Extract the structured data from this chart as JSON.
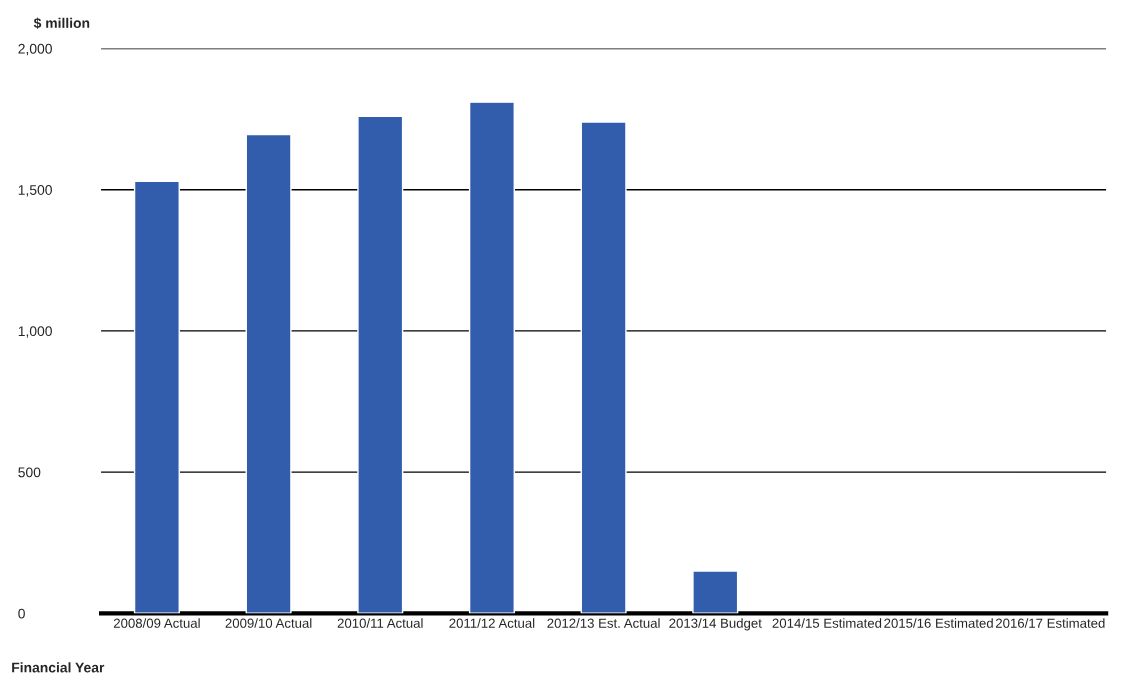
{
  "chart_data": {
    "type": "bar",
    "xlabel": "Financial Year",
    "ylabel": "$ million",
    "categories": [
      "2008/09 Actual",
      "2009/10 Actual",
      "2010/11 Actual",
      "2011/12 Actual",
      "2012/13 Est. Actual",
      "2013/14 Budget",
      "2014/15 Estimated",
      "2015/16 Estimated",
      "2016/17 Estimated"
    ],
    "values": [
      1530,
      1695,
      1760,
      1810,
      1740,
      150,
      null,
      null,
      null
    ],
    "color": "#325cac",
    "ylim": [
      0,
      2000
    ],
    "yticks": [
      0,
      {
        "value": 500,
        "label": "500"
      },
      {
        "value": 1000,
        "label": "1,000"
      },
      {
        "value": 1500,
        "label": "1,500"
      },
      {
        "value": 2000,
        "label": "2,000"
      }
    ],
    "grid": "y"
  }
}
